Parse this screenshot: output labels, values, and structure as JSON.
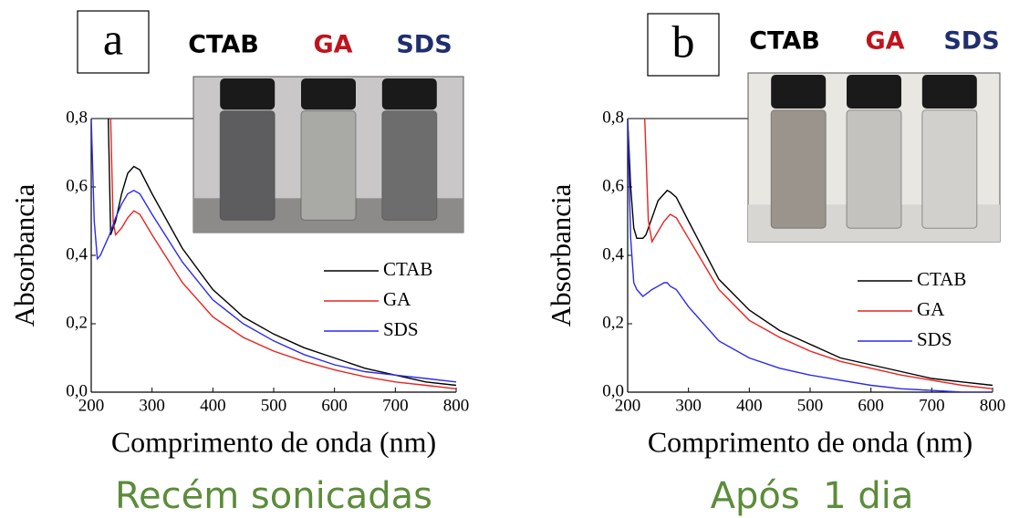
{
  "chart_data": [
    {
      "type": "line",
      "panel_label": "a",
      "photo_labels": [
        {
          "text": "CTAB",
          "color": "#000000"
        },
        {
          "text": "GA",
          "color": "#c0141c"
        },
        {
          "text": "SDS",
          "color": "#1f2f6e"
        }
      ],
      "caption": "Recém sonicadas",
      "x_label": "Comprimento de onda (nm)",
      "y_label": "Absorbancia",
      "xlim": [
        200,
        800
      ],
      "ylim": [
        0,
        0.8
      ],
      "xticks": [
        200,
        300,
        400,
        500,
        600,
        700,
        800
      ],
      "yticks": [
        {
          "value": 0,
          "label": "0,0"
        },
        {
          "value": 0.2,
          "label": "0,2"
        },
        {
          "value": 0.4,
          "label": "0,4"
        },
        {
          "value": 0.6,
          "label": "0,6"
        },
        {
          "value": 0.8,
          "label": "0,8"
        }
      ],
      "series": [
        {
          "name": "CTAB",
          "color": "#000000",
          "x": [
            228,
            232,
            240,
            250,
            260,
            270,
            280,
            300,
            350,
            400,
            450,
            500,
            550,
            600,
            650,
            700,
            750,
            800
          ],
          "values": [
            0.8,
            0.46,
            0.5,
            0.58,
            0.64,
            0.66,
            0.65,
            0.58,
            0.42,
            0.3,
            0.22,
            0.17,
            0.13,
            0.1,
            0.07,
            0.05,
            0.03,
            0.02
          ]
        },
        {
          "name": "GA",
          "color": "#e8231f",
          "x": [
            232,
            236,
            240,
            250,
            260,
            270,
            280,
            300,
            350,
            400,
            450,
            500,
            550,
            600,
            650,
            700,
            750,
            800
          ],
          "values": [
            0.8,
            0.5,
            0.46,
            0.48,
            0.51,
            0.53,
            0.52,
            0.46,
            0.32,
            0.22,
            0.16,
            0.12,
            0.09,
            0.065,
            0.045,
            0.03,
            0.02,
            0.01
          ]
        },
        {
          "name": "SDS",
          "color": "#2a2af0",
          "x": [
            200,
            205,
            210,
            215,
            220,
            230,
            240,
            250,
            260,
            270,
            280,
            300,
            350,
            400,
            450,
            500,
            550,
            600,
            650,
            700,
            750,
            800
          ],
          "values": [
            0.8,
            0.5,
            0.39,
            0.4,
            0.42,
            0.46,
            0.51,
            0.55,
            0.58,
            0.59,
            0.58,
            0.52,
            0.38,
            0.27,
            0.2,
            0.15,
            0.11,
            0.08,
            0.06,
            0.05,
            0.04,
            0.03
          ]
        }
      ]
    },
    {
      "type": "line",
      "panel_label": "b",
      "photo_labels": [
        {
          "text": "CTAB",
          "color": "#000000"
        },
        {
          "text": "GA",
          "color": "#c0141c"
        },
        {
          "text": "SDS",
          "color": "#1f2f6e"
        }
      ],
      "caption": "Após  1 dia",
      "x_label": "Comprimento de onda (nm)",
      "y_label": "Absorbancia",
      "xlim": [
        200,
        800
      ],
      "ylim": [
        0,
        0.8
      ],
      "xticks": [
        200,
        300,
        400,
        500,
        600,
        700,
        800
      ],
      "yticks": [
        {
          "value": 0,
          "label": "0,0"
        },
        {
          "value": 0.2,
          "label": "0,2"
        },
        {
          "value": 0.4,
          "label": "0,4"
        },
        {
          "value": 0.6,
          "label": "0,6"
        },
        {
          "value": 0.8,
          "label": "0,8"
        }
      ],
      "series": [
        {
          "name": "CTAB",
          "color": "#000000",
          "x": [
            200,
            205,
            210,
            215,
            225,
            230,
            240,
            250,
            260,
            265,
            270,
            280,
            300,
            350,
            400,
            450,
            500,
            550,
            600,
            650,
            700,
            750,
            800
          ],
          "values": [
            0.8,
            0.6,
            0.48,
            0.45,
            0.45,
            0.46,
            0.51,
            0.56,
            0.58,
            0.59,
            0.585,
            0.57,
            0.5,
            0.33,
            0.24,
            0.18,
            0.14,
            0.1,
            0.08,
            0.06,
            0.04,
            0.03,
            0.02
          ]
        },
        {
          "name": "GA",
          "color": "#e8231f",
          "x": [
            228,
            234,
            240,
            250,
            260,
            270,
            280,
            300,
            350,
            400,
            450,
            500,
            550,
            600,
            650,
            700,
            750,
            800
          ],
          "values": [
            0.8,
            0.5,
            0.44,
            0.47,
            0.5,
            0.52,
            0.51,
            0.45,
            0.3,
            0.21,
            0.16,
            0.12,
            0.09,
            0.07,
            0.05,
            0.035,
            0.02,
            0.01
          ]
        },
        {
          "name": "SDS",
          "color": "#2a2af0",
          "x": [
            200,
            205,
            210,
            215,
            225,
            240,
            250,
            260,
            265,
            270,
            280,
            300,
            350,
            400,
            450,
            500,
            550,
            600,
            650,
            700,
            750,
            800
          ],
          "values": [
            0.8,
            0.45,
            0.32,
            0.3,
            0.28,
            0.3,
            0.31,
            0.32,
            0.32,
            0.31,
            0.3,
            0.25,
            0.15,
            0.1,
            0.07,
            0.05,
            0.035,
            0.02,
            0.01,
            0.005,
            0.0,
            0.0
          ]
        }
      ]
    }
  ]
}
